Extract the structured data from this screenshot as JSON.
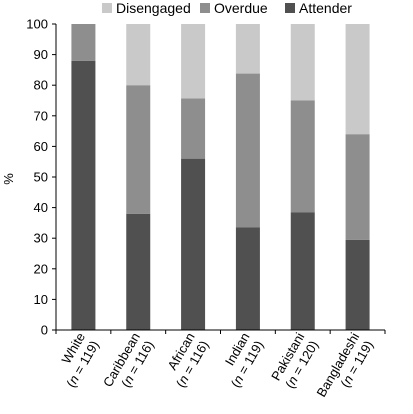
{
  "chart_data": {
    "type": "bar",
    "stacked": true,
    "percent_stacked": true,
    "title": "",
    "xlabel": "",
    "ylabel": "%",
    "ylim": [
      0,
      100
    ],
    "yticks": [
      0,
      10,
      20,
      30,
      40,
      50,
      60,
      70,
      80,
      90,
      100
    ],
    "grid": false,
    "legend_position": "top",
    "categories": [
      {
        "name": "White",
        "n": "(n = 119)"
      },
      {
        "name": "Caribbean",
        "n": "(n = 116)"
      },
      {
        "name": "African",
        "n": "(n = 116)"
      },
      {
        "name": "Indian",
        "n": "(n = 119)"
      },
      {
        "name": "Pakistani",
        "n": "(n = 120)"
      },
      {
        "name": "Bangladeshi",
        "n": "(n = 119)"
      }
    ],
    "series": [
      {
        "name": "Attender",
        "color": "#505050",
        "values": [
          88,
          38,
          56,
          33.5,
          38.5,
          29.5
        ]
      },
      {
        "name": "Overdue",
        "color": "#8e8e8e",
        "values": [
          12,
          42,
          19.7,
          50.3,
          36.5,
          34.5
        ]
      },
      {
        "name": "Disengaged",
        "color": "#c9c9c9",
        "values": [
          0,
          20,
          24.3,
          16.2,
          25,
          36
        ]
      }
    ],
    "legend_order": [
      "Disengaged",
      "Overdue",
      "Attender"
    ],
    "colors": {
      "axis": "#000000",
      "background": "#ffffff"
    }
  }
}
